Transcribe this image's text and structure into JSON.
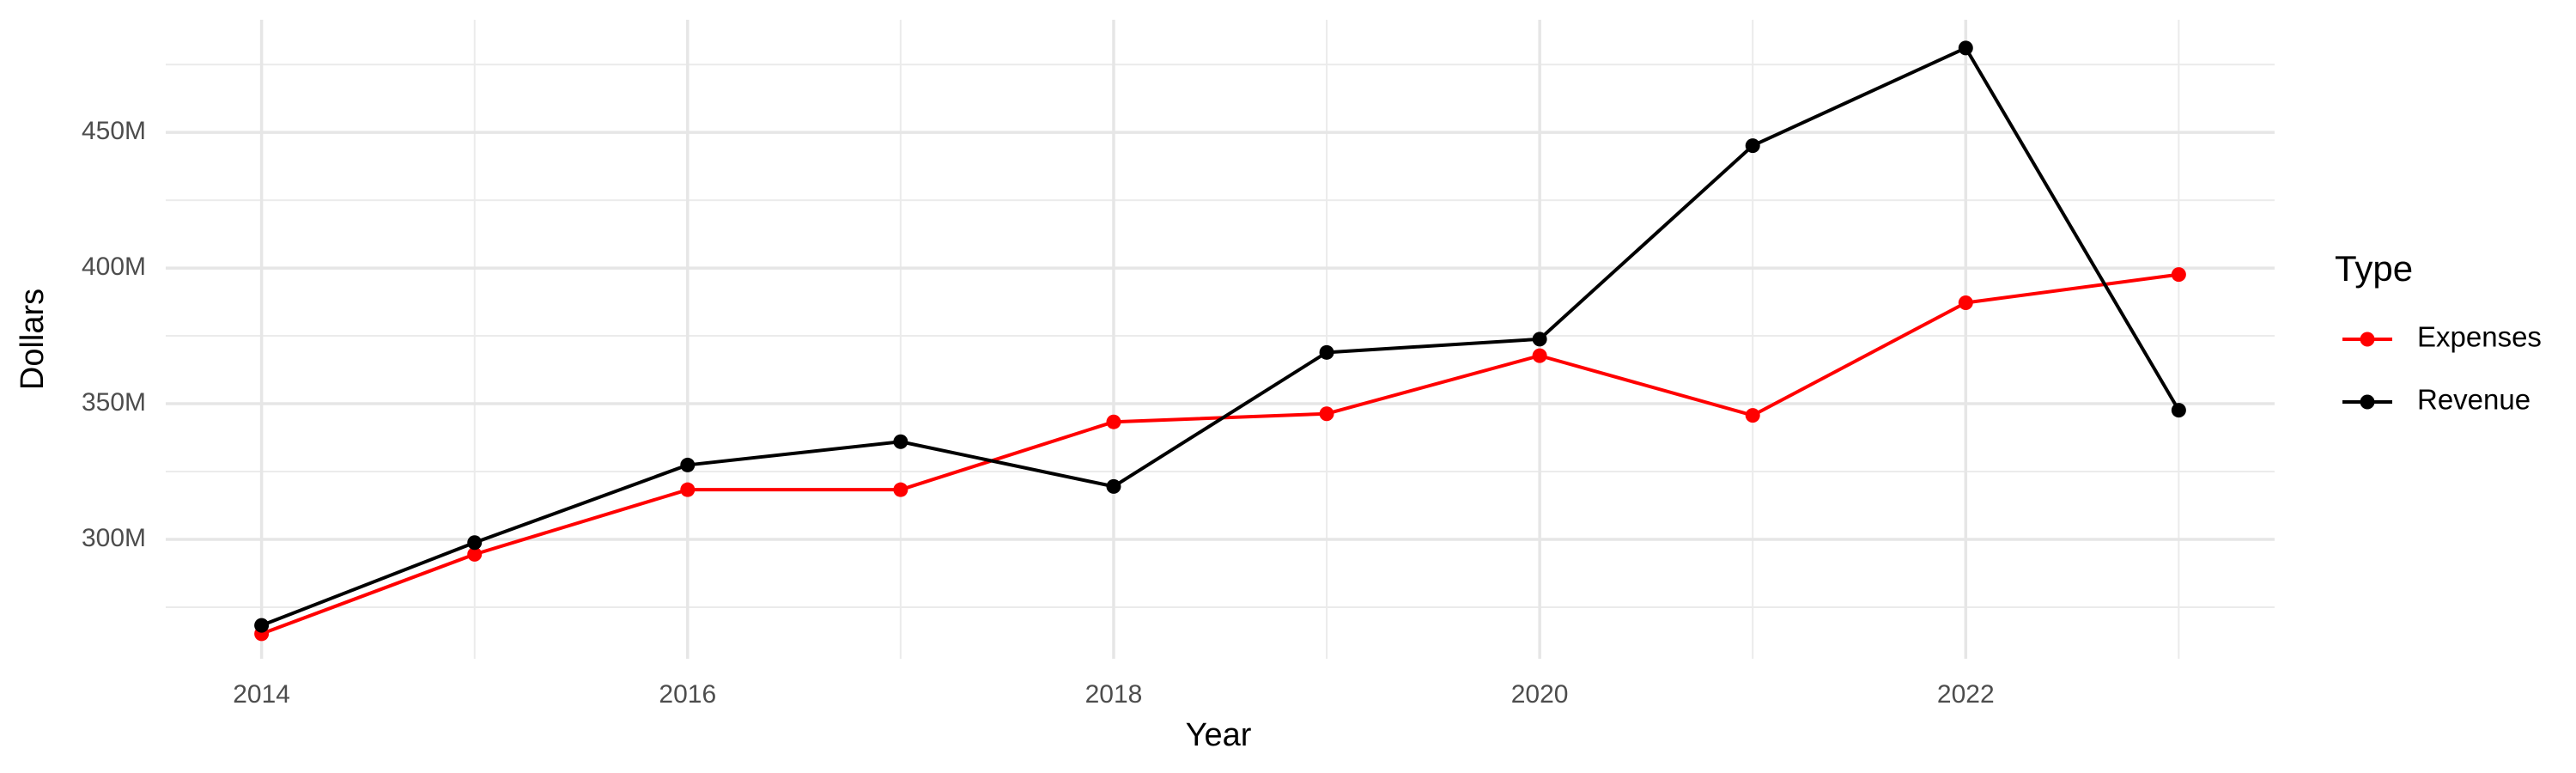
{
  "chart_data": {
    "type": "line",
    "x_label": "Year",
    "y_label": "Dollars",
    "legend_title": "Type",
    "legend_position": "right",
    "grid": true,
    "x": [
      2014,
      2015,
      2016,
      2017,
      2018,
      2019,
      2020,
      2021,
      2022,
      2023
    ],
    "series": [
      {
        "name": "Expenses",
        "color": "#ff0000",
        "values": [
          265200000,
          294500000,
          318300000,
          318300000,
          343300000,
          346300000,
          367700000,
          345700000,
          387200000,
          397600000
        ]
      },
      {
        "name": "Revenue",
        "color": "#000000",
        "values": [
          268300000,
          298800000,
          327400000,
          336000000,
          319500000,
          368900000,
          373800000,
          445100000,
          481100000,
          347600000
        ]
      }
    ],
    "xlim": [
      2013.55,
      2023.45
    ],
    "xticks": [
      2014,
      2016,
      2018,
      2020,
      2022
    ],
    "x_minor_ticks": [
      2015,
      2017,
      2019,
      2021,
      2023
    ],
    "ylim": [
      256000000,
      491500000
    ],
    "yticks": [
      {
        "value": 300000000,
        "label": "300M"
      },
      {
        "value": 350000000,
        "label": "350M"
      },
      {
        "value": 400000000,
        "label": "400M"
      },
      {
        "value": 450000000,
        "label": "450M"
      }
    ],
    "y_minor_ticks": [
      275000000,
      325000000,
      375000000,
      425000000,
      475000000
    ]
  }
}
